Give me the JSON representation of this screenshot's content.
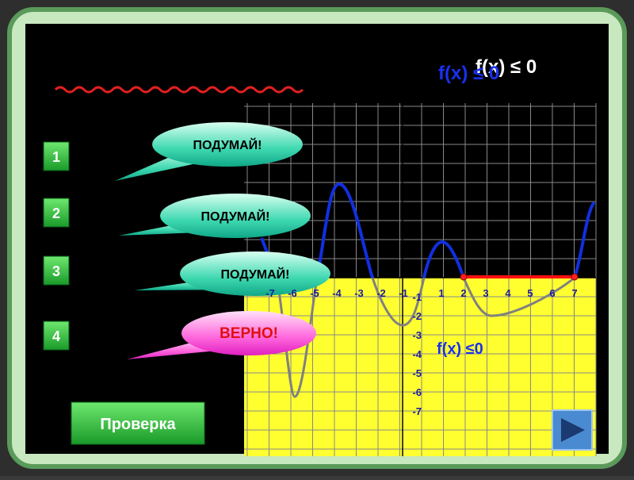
{
  "header": {
    "title": "f(x) ≤ 0"
  },
  "answers": [
    {
      "number": "1",
      "bubble": "ПОДУМАЙ!"
    },
    {
      "number": "2",
      "bubble": "ПОДУМАЙ!"
    },
    {
      "number": "3",
      "bubble": "ПОДУМАЙ!"
    },
    {
      "number": "4",
      "bubble": "ВЕРНО!"
    }
  ],
  "graph": {
    "x_labels": [
      "-7",
      "-6",
      "-5",
      "-4",
      "-3",
      "-2",
      "-1",
      "1",
      "2",
      "3",
      "4",
      "5",
      "6",
      "7"
    ],
    "y_labels": [
      "-1",
      "-2",
      "-3",
      "-4",
      "-5",
      "-6",
      "-7"
    ],
    "condition": "f(x) ≤0"
  },
  "check_button": "Проверка"
}
